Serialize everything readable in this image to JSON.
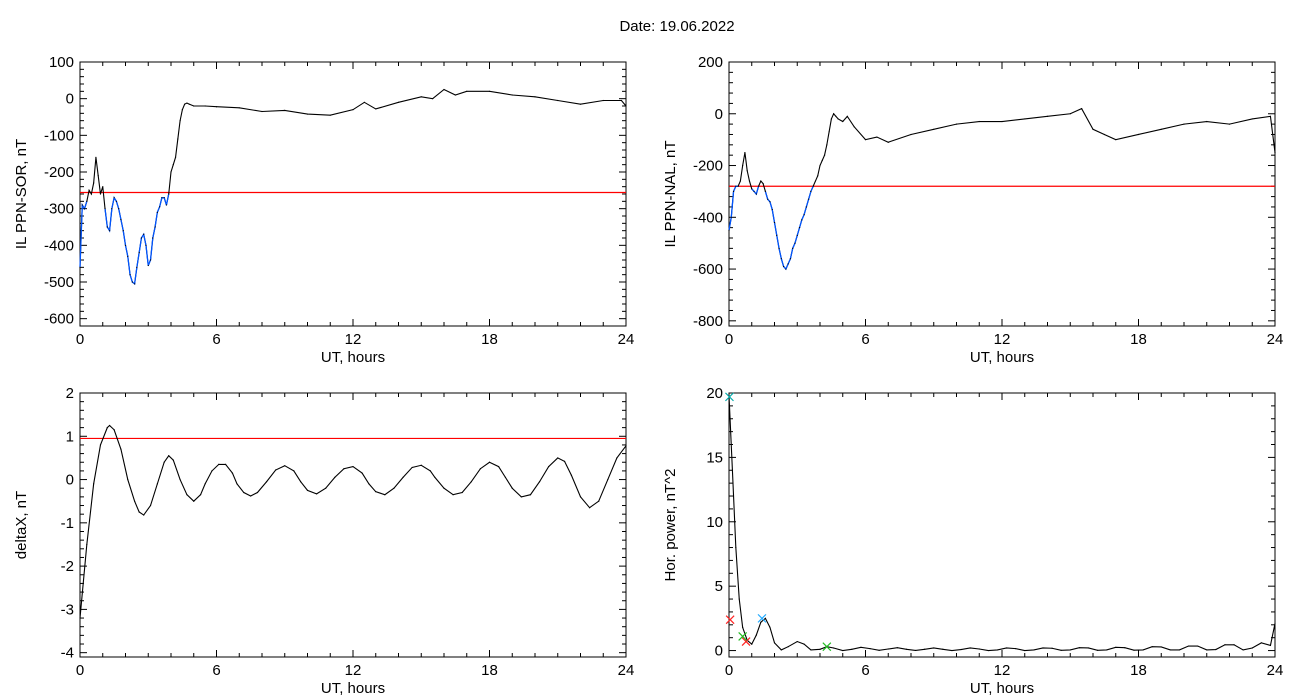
{
  "title": "Date:  19.06.2022",
  "colors": {
    "axis": "#000000",
    "trace": "#000000",
    "threshold": "#ff0000",
    "highlight": "#0055ff"
  },
  "chart_data": [
    {
      "type": "line",
      "xlabel": "UT, hours",
      "ylabel": "IL PPN-SOR, nT",
      "xlim": [
        0,
        24
      ],
      "ylim": [
        -620,
        100
      ],
      "xticks": [
        0,
        6,
        12,
        18,
        24
      ],
      "yticks": [
        100,
        0,
        -100,
        -200,
        -300,
        -400,
        -500,
        -600
      ],
      "threshold": -256,
      "highlight_when_below_threshold": true,
      "series": [
        {
          "x": [
            0,
            0.1,
            0.2,
            0.3,
            0.4,
            0.5,
            0.6,
            0.7,
            0.8,
            0.9,
            1.0,
            1.1,
            1.2,
            1.3,
            1.4,
            1.5,
            1.6,
            1.7,
            1.8,
            1.9,
            2.0,
            2.1,
            2.2,
            2.3,
            2.4,
            2.5,
            2.6,
            2.7,
            2.8,
            2.9,
            3.0,
            3.1,
            3.2,
            3.3,
            3.4,
            3.5,
            3.6,
            3.7,
            3.8,
            3.9,
            4.0,
            4.1,
            4.2,
            4.3,
            4.4,
            4.5,
            4.6,
            4.7,
            4.8,
            5,
            5.5,
            6,
            7,
            8,
            9,
            10,
            11,
            12,
            12.5,
            13,
            14,
            15,
            15.5,
            16,
            16.5,
            17,
            18,
            19,
            20,
            21,
            22,
            23,
            23.8,
            24
          ],
          "y": [
            -460,
            -290,
            -300,
            -280,
            -250,
            -260,
            -230,
            -160,
            -210,
            -260,
            -240,
            -300,
            -350,
            -360,
            -300,
            -270,
            -280,
            -300,
            -330,
            -360,
            -400,
            -430,
            -480,
            -500,
            -505,
            -460,
            -420,
            -380,
            -370,
            -400,
            -455,
            -440,
            -380,
            -350,
            -310,
            -295,
            -270,
            -270,
            -290,
            -260,
            -200,
            -180,
            -160,
            -110,
            -60,
            -30,
            -15,
            -12,
            -15,
            -20,
            -20,
            -22,
            -25,
            -35,
            -32,
            -42,
            -45,
            -30,
            -10,
            -28,
            -10,
            5,
            0,
            25,
            10,
            20,
            20,
            10,
            5,
            -5,
            -15,
            -5,
            -5,
            -20
          ]
        }
      ]
    },
    {
      "type": "line",
      "xlabel": "UT, hours",
      "ylabel": "IL PPN-NAL, nT",
      "xlim": [
        0,
        24
      ],
      "ylim": [
        -820,
        200
      ],
      "xticks": [
        0,
        6,
        12,
        18,
        24
      ],
      "yticks": [
        200,
        0,
        -200,
        -400,
        -600,
        -800
      ],
      "threshold": -280,
      "highlight_when_below_threshold": true,
      "series": [
        {
          "x": [
            0,
            0.1,
            0.2,
            0.3,
            0.4,
            0.5,
            0.6,
            0.7,
            0.8,
            0.9,
            1.0,
            1.1,
            1.2,
            1.3,
            1.4,
            1.5,
            1.6,
            1.7,
            1.8,
            1.9,
            2.0,
            2.1,
            2.2,
            2.3,
            2.4,
            2.5,
            2.6,
            2.7,
            2.8,
            2.9,
            3.0,
            3.1,
            3.2,
            3.3,
            3.4,
            3.5,
            3.6,
            3.7,
            3.8,
            3.9,
            4.0,
            4.1,
            4.2,
            4.3,
            4.4,
            4.5,
            4.6,
            4.7,
            4.8,
            5.0,
            5.2,
            5.5,
            6.0,
            6.5,
            7,
            8,
            9,
            10,
            11,
            12,
            13,
            14,
            15,
            15.5,
            16,
            16.5,
            17,
            18,
            19,
            20,
            21,
            22,
            23,
            23.8,
            24
          ],
          "y": [
            -450,
            -400,
            -300,
            -280,
            -280,
            -260,
            -200,
            -150,
            -220,
            -260,
            -290,
            -300,
            -310,
            -280,
            -260,
            -270,
            -300,
            -330,
            -340,
            -370,
            -420,
            -470,
            -520,
            -560,
            -590,
            -600,
            -580,
            -560,
            -520,
            -500,
            -470,
            -440,
            -410,
            -390,
            -360,
            -330,
            -300,
            -280,
            -260,
            -240,
            -200,
            -180,
            -160,
            -120,
            -70,
            -20,
            0,
            -10,
            -20,
            -30,
            -10,
            -50,
            -100,
            -90,
            -110,
            -80,
            -60,
            -40,
            -30,
            -30,
            -20,
            -10,
            0,
            20,
            -60,
            -80,
            -100,
            -80,
            -60,
            -40,
            -30,
            -40,
            -20,
            -10,
            -150
          ]
        }
      ]
    },
    {
      "type": "line",
      "xlabel": "UT, hours",
      "ylabel": "deltaX, nT",
      "xlim": [
        0,
        24
      ],
      "ylim": [
        -4.1,
        2
      ],
      "xticks": [
        0,
        6,
        12,
        18,
        24
      ],
      "yticks": [
        2,
        1,
        0,
        -1,
        -2,
        -3,
        -4
      ],
      "threshold": 0.95,
      "series": [
        {
          "x": [
            0,
            0.3,
            0.6,
            0.9,
            1.2,
            1.3,
            1.5,
            1.8,
            2.1,
            2.4,
            2.6,
            2.8,
            3.1,
            3.4,
            3.7,
            3.9,
            4.1,
            4.4,
            4.7,
            5.0,
            5.3,
            5.5,
            5.8,
            6.1,
            6.4,
            6.7,
            6.9,
            7.2,
            7.5,
            7.8,
            8.2,
            8.6,
            9.0,
            9.4,
            9.7,
            10.0,
            10.4,
            10.8,
            11.2,
            11.6,
            12.0,
            12.4,
            12.7,
            13.0,
            13.4,
            13.8,
            14.2,
            14.6,
            15.0,
            15.4,
            15.6,
            16.0,
            16.4,
            16.8,
            17.2,
            17.6,
            18.0,
            18.4,
            18.7,
            19.0,
            19.4,
            19.8,
            20.2,
            20.6,
            21.0,
            21.3,
            21.6,
            22.0,
            22.4,
            22.8,
            23.2,
            23.6,
            24.0
          ],
          "y": [
            -3.2,
            -1.5,
            -0.1,
            0.8,
            1.2,
            1.25,
            1.15,
            0.7,
            0.0,
            -0.5,
            -0.75,
            -0.82,
            -0.6,
            -0.1,
            0.4,
            0.55,
            0.45,
            0.0,
            -0.35,
            -0.5,
            -0.35,
            -0.1,
            0.2,
            0.35,
            0.35,
            0.15,
            -0.1,
            -0.3,
            -0.38,
            -0.3,
            -0.05,
            0.22,
            0.32,
            0.2,
            -0.05,
            -0.25,
            -0.33,
            -0.2,
            0.05,
            0.25,
            0.3,
            0.15,
            -0.1,
            -0.28,
            -0.35,
            -0.2,
            0.05,
            0.28,
            0.33,
            0.2,
            0.05,
            -0.2,
            -0.35,
            -0.3,
            -0.05,
            0.25,
            0.4,
            0.3,
            0.05,
            -0.2,
            -0.4,
            -0.35,
            -0.05,
            0.3,
            0.5,
            0.42,
            0.1,
            -0.4,
            -0.65,
            -0.5,
            0.0,
            0.5,
            0.78
          ]
        }
      ]
    },
    {
      "type": "line",
      "xlabel": "UT, hours",
      "ylabel": "Hor. power, nT^2",
      "xlim": [
        0,
        24
      ],
      "ylim": [
        -0.5,
        20
      ],
      "xticks": [
        0,
        6,
        12,
        18,
        24
      ],
      "yticks": [
        20,
        15,
        10,
        5,
        0
      ],
      "series": [
        {
          "x": [
            0,
            0.15,
            0.3,
            0.45,
            0.6,
            0.8,
            1.0,
            1.2,
            1.4,
            1.6,
            1.8,
            2.0,
            2.3,
            2.6,
            3.0,
            3.3,
            3.6,
            4.0,
            4.3,
            4.6,
            5.0,
            5.4,
            5.8,
            6.2,
            6.6,
            7.0,
            7.4,
            7.8,
            8.2,
            8.6,
            9.0,
            9.4,
            9.8,
            10.2,
            10.6,
            11.0,
            11.4,
            11.8,
            12.2,
            12.6,
            13.0,
            13.4,
            13.8,
            14.2,
            14.6,
            15.0,
            15.4,
            15.8,
            16.2,
            16.6,
            17.0,
            17.4,
            17.8,
            18.2,
            18.6,
            19.0,
            19.4,
            19.8,
            20.2,
            20.6,
            21.0,
            21.4,
            21.8,
            22.2,
            22.6,
            23.0,
            23.4,
            23.8,
            24.0
          ],
          "y": [
            19.8,
            14,
            8,
            4,
            1.8,
            0.8,
            0.5,
            1.2,
            2.2,
            2.5,
            1.8,
            0.6,
            0.05,
            0.3,
            0.7,
            0.5,
            0.05,
            0.1,
            0.3,
            0.2,
            0.0,
            0.1,
            0.25,
            0.15,
            0.02,
            0.12,
            0.22,
            0.1,
            0.01,
            0.1,
            0.2,
            0.1,
            0.0,
            0.08,
            0.2,
            0.12,
            0.0,
            0.05,
            0.2,
            0.15,
            0.0,
            0.05,
            0.2,
            0.18,
            0.02,
            0.05,
            0.22,
            0.2,
            0.02,
            0.05,
            0.25,
            0.22,
            0.03,
            0.05,
            0.3,
            0.28,
            0.05,
            0.05,
            0.35,
            0.35,
            0.05,
            0.08,
            0.45,
            0.45,
            0.05,
            0.2,
            0.6,
            0.4,
            2.1
          ]
        }
      ],
      "markers": [
        {
          "x": 0.02,
          "y": 19.7,
          "color": "#00aaaa"
        },
        {
          "x": 0.05,
          "y": 2.4,
          "color": "#ff2222"
        },
        {
          "x": 0.75,
          "y": 0.7,
          "color": "#ff2222"
        },
        {
          "x": 0.6,
          "y": 1.1,
          "color": "#22bb22"
        },
        {
          "x": 1.45,
          "y": 2.5,
          "color": "#22aaff"
        },
        {
          "x": 4.3,
          "y": 0.3,
          "color": "#22bb22"
        }
      ]
    }
  ]
}
